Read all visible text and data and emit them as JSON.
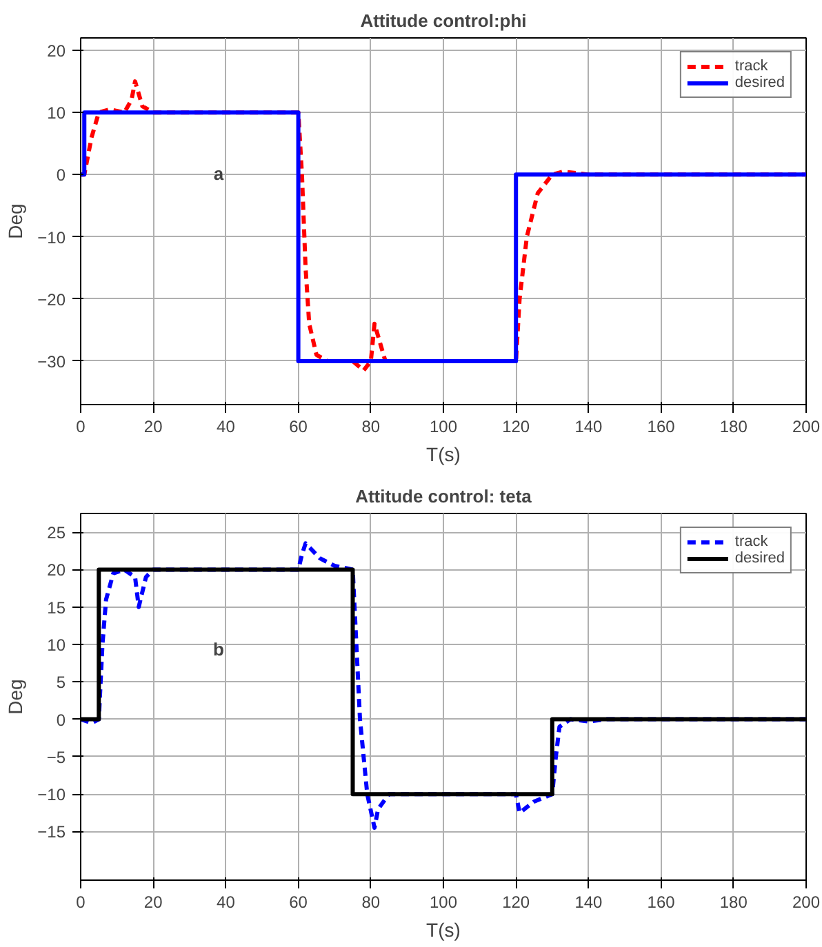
{
  "chart_data": [
    {
      "type": "line",
      "title": "Attitude control:phi",
      "xlabel": "T(s)",
      "ylabel": "Deg",
      "xlim": [
        0,
        200
      ],
      "xticks": [
        0,
        20,
        40,
        60,
        80,
        100,
        120,
        140,
        160,
        180,
        200
      ],
      "ylim": [
        -37,
        22
      ],
      "yticks": [
        -30,
        -20,
        -10,
        0,
        10,
        20
      ],
      "grid": true,
      "legend": "top right",
      "annotations": [
        "a"
      ],
      "series": [
        {
          "name": "track",
          "color": "#ff0000",
          "line_style": "dashed",
          "x": [
            0,
            1,
            2,
            3,
            5,
            8,
            12,
            14,
            15,
            17,
            20,
            60,
            61,
            62,
            63,
            65,
            68,
            75,
            78,
            80,
            81,
            84,
            90,
            120,
            121,
            123,
            126,
            130,
            133,
            140,
            200
          ],
          "values": [
            0,
            0,
            3,
            6,
            10,
            10.5,
            10,
            12,
            15,
            11,
            10,
            10,
            0,
            -15,
            -24,
            -29,
            -30,
            -30,
            -31.5,
            -30,
            -24,
            -30,
            -30,
            -30,
            -20,
            -10,
            -3,
            0,
            0.5,
            0,
            0
          ]
        },
        {
          "name": "desired",
          "color": "#0000ff",
          "line_style": "solid",
          "x": [
            0,
            1,
            1,
            60,
            60,
            120,
            120,
            200
          ],
          "values": [
            0,
            0,
            10,
            10,
            -30,
            -30,
            0,
            0
          ]
        }
      ]
    },
    {
      "type": "line",
      "title": "Attitude control: teta",
      "xlabel": "T(s)",
      "ylabel": "Deg",
      "xlim": [
        0,
        200
      ],
      "xticks": [
        0,
        20,
        40,
        60,
        80,
        100,
        120,
        140,
        160,
        180,
        200
      ],
      "ylim": [
        -21.5,
        27.5
      ],
      "yticks": [
        -15,
        -10,
        -5,
        0,
        5,
        10,
        15,
        20,
        25
      ],
      "grid": true,
      "legend": "top right",
      "annotations": [
        "b"
      ],
      "series": [
        {
          "name": "track",
          "color": "#0000ff",
          "line_style": "dashed",
          "x": [
            0,
            3,
            5,
            6,
            7,
            9,
            12,
            15,
            16,
            18,
            20,
            25,
            60,
            61,
            62,
            66,
            70,
            75,
            76,
            77,
            78,
            79,
            81,
            82,
            85,
            90,
            120,
            121,
            125,
            130,
            131,
            132,
            135,
            140,
            145,
            200
          ],
          "values": [
            0,
            -0.5,
            0,
            10,
            16,
            19.5,
            20,
            19,
            15,
            19,
            20,
            20,
            20,
            22,
            23.5,
            21.5,
            20.5,
            20,
            10,
            0,
            -5,
            -10,
            -14.5,
            -12,
            -10,
            -10,
            -10,
            -12.5,
            -11,
            -10,
            -5,
            -1,
            0,
            -0.3,
            0,
            0
          ]
        },
        {
          "name": "desired",
          "color": "#000000",
          "line_style": "solid",
          "x": [
            0,
            5,
            5,
            75,
            75,
            130,
            130,
            200
          ],
          "values": [
            0,
            0,
            20,
            20,
            -10,
            -10,
            0,
            0
          ]
        }
      ]
    }
  ]
}
